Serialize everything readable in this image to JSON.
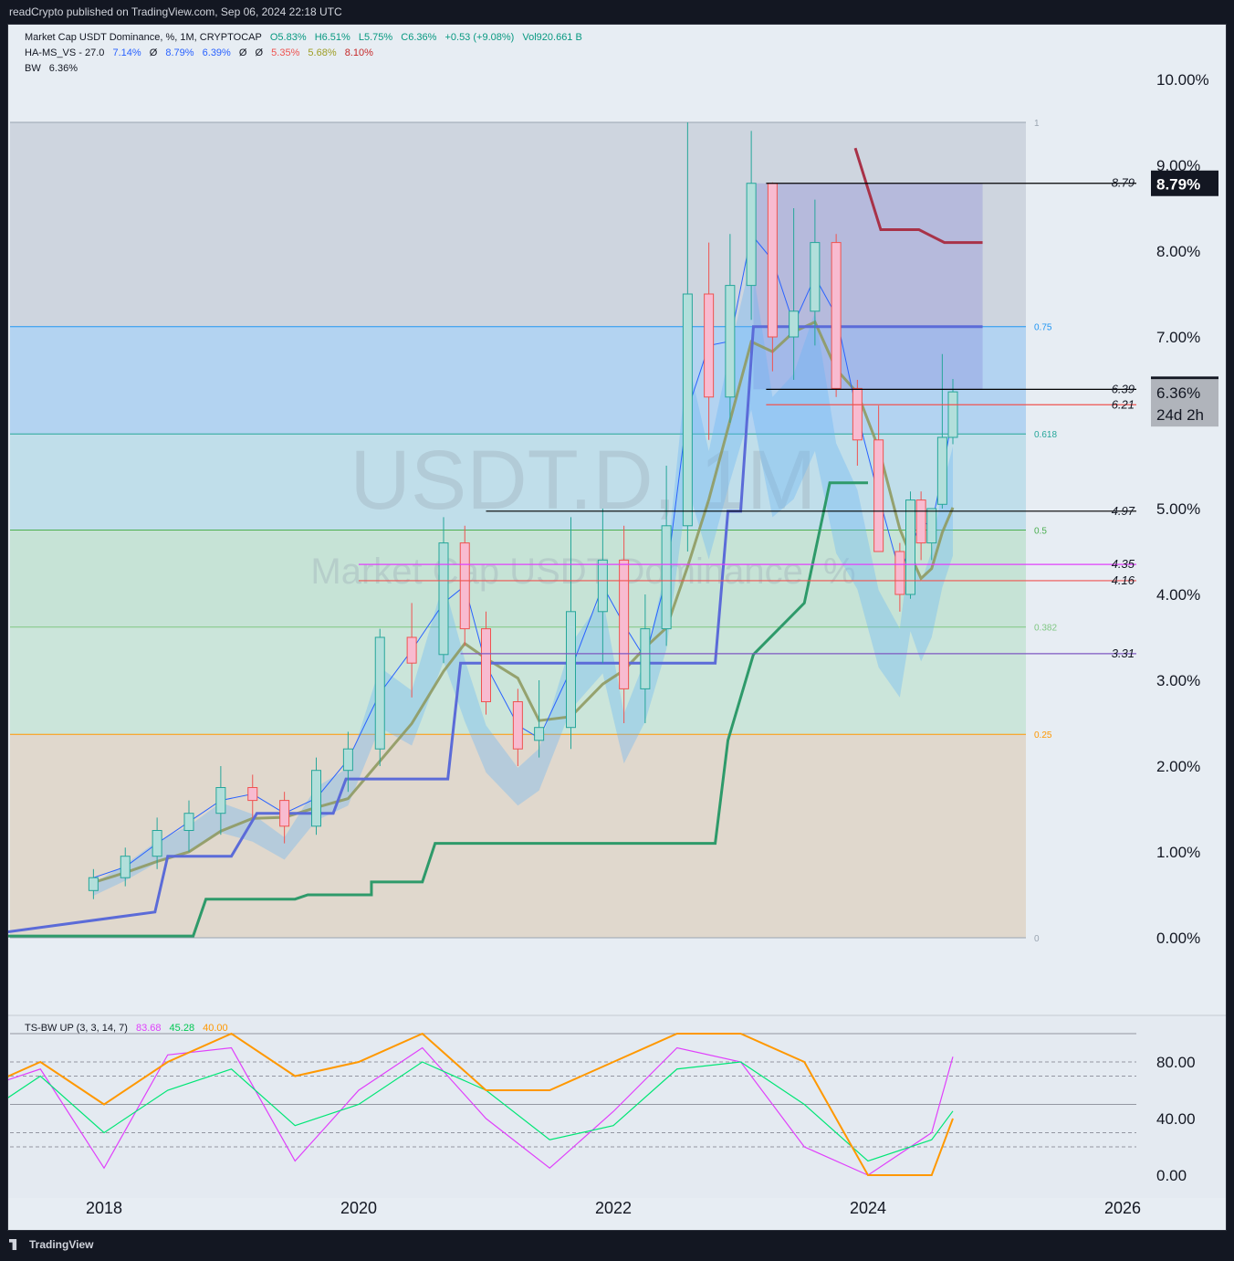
{
  "header": {
    "published": "readCrypto published on TradingView.com, Sep 06, 2024 22:18 UTC"
  },
  "footer": {
    "brand": "TradingView"
  },
  "legend": {
    "symbol": "Market Cap USDT Dominance, %, 1M, CRYPTOCAP",
    "ohlc": {
      "o": "O5.83%",
      "h": "H6.51%",
      "l": "L5.75%",
      "c": "C6.36%",
      "chg": "+0.53 (+9.08%)",
      "vol": "Vol920.661 B"
    },
    "ind1": {
      "name": "HA-MS_VS - 27.0",
      "v1": "7.14%",
      "v2": "8.79%",
      "v3": "6.39%",
      "v4": "5.35%",
      "v5": "5.68%",
      "v6": "8.10%",
      "slot": "Ø"
    },
    "ind2": {
      "name": "BW",
      "value": "6.36%"
    },
    "osc": {
      "name": "TS-BW UP (3, 3, 14, 7)",
      "v1": "83.68",
      "v2": "45.28",
      "v3": "40.00"
    }
  },
  "watermark": {
    "big": "USDT.D, 1M",
    "sub": "Market Cap USDT Dominance, %"
  },
  "colors": {
    "up": "#26a69a",
    "down": "#ef5350",
    "green_line": "#2e9a6a",
    "blue_line": "#5b6bd8",
    "olive": "#8f9a62",
    "maroon": "#a83248"
  },
  "chart_data": [
    {
      "type": "line",
      "title": "Market Cap USDT Dominance, %, 1M, CRYPTOCAP",
      "y_unit": "%",
      "ylim": [
        0,
        10.6
      ],
      "x_range": [
        "2016-12",
        "2026-06"
      ],
      "x_ticks": [
        "2018",
        "2020",
        "2022",
        "2024",
        "2026"
      ],
      "y_ticks": [
        "10.00%",
        "9.00%",
        "8.00%",
        "7.00%",
        "5.00%",
        "4.00%",
        "3.00%",
        "2.00%",
        "1.00%",
        "0.00%"
      ],
      "fib_levels": [
        {
          "label": "1",
          "value": 9.5
        },
        {
          "label": "0.75",
          "value": 7.12
        },
        {
          "label": "0.618",
          "value": 5.87
        },
        {
          "label": "0.5",
          "value": 4.75
        },
        {
          "label": "0.382",
          "value": 3.62
        },
        {
          "label": "0.25",
          "value": 2.37
        },
        {
          "label": "0",
          "value": 0
        }
      ],
      "hlines": [
        {
          "label": "8.79",
          "value": 8.79,
          "color": "#000000"
        },
        {
          "label": "6.39",
          "value": 6.39,
          "color": "#000000"
        },
        {
          "label": "6.21",
          "value": 6.21,
          "color": "#ef5350"
        },
        {
          "label": "4.97",
          "value": 4.97,
          "color": "#000000"
        },
        {
          "label": "4.35",
          "value": 4.35,
          "color": "#e040fb"
        },
        {
          "label": "4.16",
          "value": 4.16,
          "color": "#ef5350"
        },
        {
          "label": "3.31",
          "value": 3.31,
          "color": "#7e57c2"
        }
      ],
      "price_badges": [
        {
          "text": "8.79%",
          "value": 8.79,
          "style": "dark"
        },
        {
          "text": "6.39%",
          "value": 6.39,
          "style": "dark"
        }
      ],
      "current": {
        "price": "6.36%",
        "countdown": "24d 2h",
        "value": 6.36
      },
      "candles": [
        {
          "t": "2017-12",
          "o": 0.55,
          "h": 0.8,
          "l": 0.45,
          "c": 0.7
        },
        {
          "t": "2018-03",
          "o": 0.7,
          "h": 1.05,
          "l": 0.6,
          "c": 0.95
        },
        {
          "t": "2018-06",
          "o": 0.95,
          "h": 1.4,
          "l": 0.8,
          "c": 1.25
        },
        {
          "t": "2018-09",
          "o": 1.25,
          "h": 1.6,
          "l": 1.0,
          "c": 1.45
        },
        {
          "t": "2018-12",
          "o": 1.45,
          "h": 2.0,
          "l": 1.2,
          "c": 1.75
        },
        {
          "t": "2019-03",
          "o": 1.75,
          "h": 1.9,
          "l": 1.4,
          "c": 1.6
        },
        {
          "t": "2019-06",
          "o": 1.6,
          "h": 1.7,
          "l": 1.1,
          "c": 1.3
        },
        {
          "t": "2019-09",
          "o": 1.3,
          "h": 2.1,
          "l": 1.2,
          "c": 1.95
        },
        {
          "t": "2019-12",
          "o": 1.95,
          "h": 2.4,
          "l": 1.7,
          "c": 2.2
        },
        {
          "t": "2020-03",
          "o": 2.2,
          "h": 3.6,
          "l": 2.0,
          "c": 3.5
        },
        {
          "t": "2020-06",
          "o": 3.5,
          "h": 3.9,
          "l": 2.8,
          "c": 3.2
        },
        {
          "t": "2020-09",
          "o": 3.3,
          "h": 4.9,
          "l": 3.2,
          "c": 4.6
        },
        {
          "t": "2020-11",
          "o": 4.6,
          "h": 4.8,
          "l": 3.4,
          "c": 3.6
        },
        {
          "t": "2021-01",
          "o": 3.6,
          "h": 3.8,
          "l": 2.6,
          "c": 2.75
        },
        {
          "t": "2021-04",
          "o": 2.75,
          "h": 2.9,
          "l": 2.0,
          "c": 2.2
        },
        {
          "t": "2021-06",
          "o": 2.3,
          "h": 3.0,
          "l": 2.1,
          "c": 2.45
        },
        {
          "t": "2021-09",
          "o": 2.45,
          "h": 4.9,
          "l": 2.2,
          "c": 3.8
        },
        {
          "t": "2021-12",
          "o": 3.8,
          "h": 5.0,
          "l": 3.2,
          "c": 4.4
        },
        {
          "t": "2022-02",
          "o": 4.4,
          "h": 4.8,
          "l": 2.5,
          "c": 2.9
        },
        {
          "t": "2022-04",
          "o": 2.9,
          "h": 4.0,
          "l": 2.5,
          "c": 3.6
        },
        {
          "t": "2022-06",
          "o": 3.6,
          "h": 5.5,
          "l": 3.4,
          "c": 4.8
        },
        {
          "t": "2022-08",
          "o": 4.8,
          "h": 9.5,
          "l": 4.5,
          "c": 7.5
        },
        {
          "t": "2022-10",
          "o": 7.5,
          "h": 8.1,
          "l": 5.8,
          "c": 6.3
        },
        {
          "t": "2022-12",
          "o": 6.3,
          "h": 8.2,
          "l": 6.0,
          "c": 7.6
        },
        {
          "t": "2023-02",
          "o": 7.6,
          "h": 9.4,
          "l": 7.2,
          "c": 8.79
        },
        {
          "t": "2023-04",
          "o": 8.79,
          "h": 8.8,
          "l": 6.6,
          "c": 7.0
        },
        {
          "t": "2023-06",
          "o": 7.0,
          "h": 8.5,
          "l": 6.5,
          "c": 7.3
        },
        {
          "t": "2023-08",
          "o": 7.3,
          "h": 8.6,
          "l": 6.9,
          "c": 8.1
        },
        {
          "t": "2023-10",
          "o": 8.1,
          "h": 8.2,
          "l": 6.3,
          "c": 6.4
        },
        {
          "t": "2023-12",
          "o": 6.4,
          "h": 6.5,
          "l": 5.5,
          "c": 5.8
        },
        {
          "t": "2024-02",
          "o": 5.8,
          "h": 6.2,
          "l": 4.5,
          "c": 4.5
        },
        {
          "t": "2024-04",
          "o": 4.5,
          "h": 4.6,
          "l": 3.8,
          "c": 4.0
        },
        {
          "t": "2024-05",
          "o": 4.0,
          "h": 5.2,
          "l": 3.95,
          "c": 5.1
        },
        {
          "t": "2024-06",
          "o": 5.1,
          "h": 5.2,
          "l": 4.4,
          "c": 4.6
        },
        {
          "t": "2024-07",
          "o": 4.6,
          "h": 5.0,
          "l": 4.4,
          "c": 5.0
        },
        {
          "t": "2024-08",
          "o": 5.05,
          "h": 6.8,
          "l": 5.0,
          "c": 5.83
        },
        {
          "t": "2024-09",
          "o": 5.83,
          "h": 6.51,
          "l": 5.75,
          "c": 6.36
        }
      ]
    },
    {
      "type": "line",
      "title": "TS-BW UP (3, 3, 14, 7)",
      "ylim": [
        0,
        100
      ],
      "y_ticks": [
        "80.00",
        "40.00",
        "0.00"
      ],
      "x": [
        "2017-01",
        "2017-07",
        "2018-01",
        "2018-07",
        "2019-01",
        "2019-07",
        "2020-01",
        "2020-07",
        "2021-01",
        "2021-07",
        "2022-01",
        "2022-07",
        "2023-01",
        "2023-07",
        "2024-01",
        "2024-07",
        "2024-09"
      ],
      "series": [
        {
          "name": "83.68",
          "color": "#e040fb",
          "values": [
            60,
            75,
            5,
            85,
            90,
            10,
            60,
            90,
            40,
            5,
            45,
            90,
            80,
            20,
            0,
            30,
            83.68
          ]
        },
        {
          "name": "45.28",
          "color": "#00e676",
          "values": [
            40,
            70,
            30,
            60,
            75,
            35,
            50,
            80,
            60,
            25,
            35,
            75,
            80,
            50,
            10,
            25,
            45.28
          ]
        },
        {
          "name": "40.00",
          "color": "#ff9800",
          "values": [
            60,
            80,
            50,
            80,
            100,
            70,
            80,
            100,
            60,
            60,
            80,
            100,
            100,
            80,
            0,
            0,
            40
          ]
        }
      ]
    }
  ]
}
